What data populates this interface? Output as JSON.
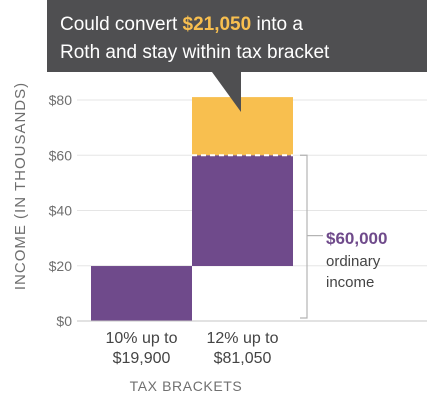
{
  "callout": {
    "prefix": "Could convert ",
    "amount": "$21,050",
    "suffix": " into a",
    "line2": "Roth and stay within tax bracket"
  },
  "annotation": {
    "amount": "$60,000",
    "line1": "ordinary",
    "line2": "income"
  },
  "colors": {
    "purple": "#6f4a8b",
    "gold": "#f8bf4f",
    "callout_bg": "#4f4f51",
    "text": "#555555",
    "axis": "#c9c9c9",
    "grid": "#e5e5e5"
  },
  "chart_data": {
    "type": "bar",
    "xlabel": "TAX BRACKETS",
    "ylabel": "INCOME (IN THOUSANDS)",
    "ylim": [
      0,
      80
    ],
    "yticks": [
      0,
      20,
      40,
      60,
      80
    ],
    "ytick_labels": [
      "$0",
      "$20",
      "$40",
      "$60",
      "$80"
    ],
    "grid": true,
    "categories": [
      {
        "line1": "10% up to",
        "line2": "$19,900"
      },
      {
        "line1": "12% up to",
        "line2": "$81,050"
      }
    ],
    "segments": [
      {
        "category": 0,
        "from": 0,
        "to": 19.9,
        "kind": "ordinary"
      },
      {
        "category": 1,
        "from": 19.9,
        "to": 60,
        "kind": "ordinary"
      },
      {
        "category": 1,
        "from": 60,
        "to": 81.05,
        "kind": "conversion"
      }
    ]
  }
}
